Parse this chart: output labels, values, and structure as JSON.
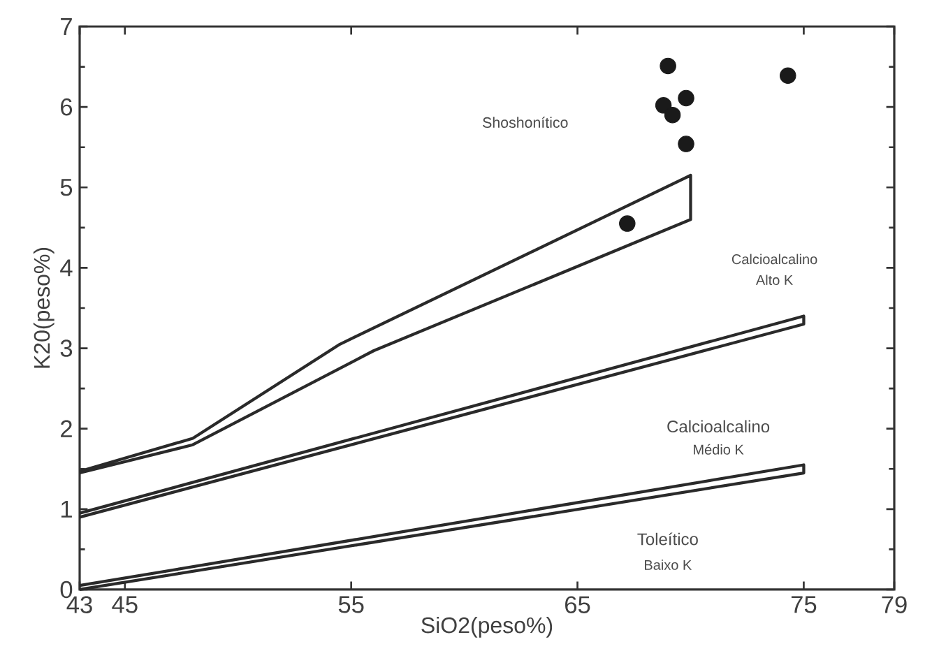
{
  "chart_data": {
    "type": "scatter",
    "xlabel": "SiO2(peso%)",
    "ylabel": "K20(peso%)",
    "xlim": [
      43,
      79
    ],
    "xticks": [
      43,
      45,
      55,
      65,
      75,
      79
    ],
    "ylim": [
      0,
      7
    ],
    "yticks": [
      0,
      1,
      2,
      3,
      4,
      5,
      6,
      7
    ],
    "grid": false,
    "series": [
      {
        "color": "#1a1a1a",
        "marker": "circle",
        "x": [
          69.0,
          68.8,
          69.2,
          69.8,
          69.8,
          67.2,
          74.3
        ],
        "values": [
          6.51,
          6.02,
          5.9,
          6.11,
          5.54,
          4.55,
          6.39
        ]
      },
      {
        "type": "line",
        "color": "#2a2a2a",
        "marker": "none",
        "x": [
          43,
          48,
          54.5,
          70,
          70,
          56,
          48,
          43
        ],
        "values": [
          1.47,
          1.88,
          3.05,
          5.15,
          4.6,
          2.97,
          1.8,
          1.45
        ]
      },
      {
        "type": "line",
        "color": "#2a2a2a",
        "marker": "none",
        "x": [
          43,
          75,
          75,
          43
        ],
        "values": [
          0.95,
          3.4,
          3.3,
          0.9
        ]
      },
      {
        "type": "line",
        "color": "#2a2a2a",
        "marker": "none",
        "x": [
          43,
          75,
          75,
          43
        ],
        "values": [
          0.05,
          1.55,
          1.45,
          0.0
        ]
      }
    ],
    "annotations": [
      "Shoshonítico",
      "Calcioalcalino",
      "Alto K",
      "Calcioalcalino",
      "Médio K",
      "Toleítico",
      "Baixo K"
    ]
  }
}
